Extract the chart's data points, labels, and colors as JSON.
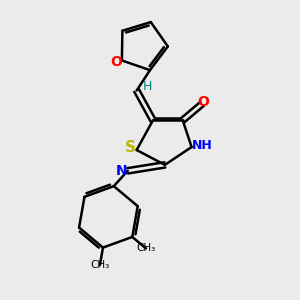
{
  "bg_color": "#ebebeb",
  "bond_color": "#000000",
  "S_color": "#b8b800",
  "O_color": "#ff0000",
  "N_color": "#0000ff",
  "H_color": "#008080",
  "bond_width": 1.8,
  "figsize": [
    3.0,
    3.0
  ],
  "dpi": 100,
  "xlim": [
    0,
    10
  ],
  "ylim": [
    0,
    10
  ]
}
